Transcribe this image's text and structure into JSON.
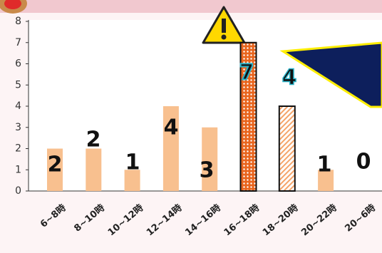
{
  "chart_data": {
    "type": "bar",
    "categories": [
      "6~8時",
      "8~10時",
      "10~12時",
      "12~14時",
      "14~16時",
      "16~18時",
      "18~20時",
      "20~22時",
      "20~6時"
    ],
    "values": [
      2,
      2,
      1,
      4,
      3,
      7,
      4,
      1,
      0
    ],
    "color": "#f8c08f",
    "colors": [
      "#f8c08f",
      "#f8c08f",
      "#f8c08f",
      "#f8c08f",
      "#f8c08f",
      "#e8651e",
      "#f4a46a",
      "#f8c08f",
      "#f8c08f"
    ],
    "ylim": [
      0,
      8
    ],
    "yticks": [
      0,
      1,
      2,
      3,
      4,
      5,
      6,
      7,
      8
    ],
    "grid": false
  }
}
